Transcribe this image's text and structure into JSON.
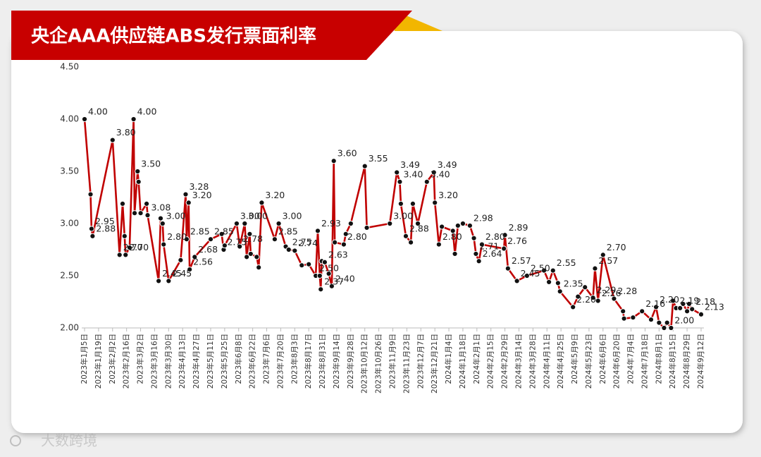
{
  "header": {
    "title": "央企AAA供应链ABS发行票面利率"
  },
  "watermark": "大数跨境",
  "chart_data": {
    "type": "line",
    "x": [
      "2023年1月5日",
      "2023年1月11日",
      "2023年1月12日",
      "2023年1月13日",
      "2023年2月2日",
      "2023年2月9日",
      "2023年2月12日",
      "2023年2月14日",
      "2023年2月15日",
      "2023年2月19日",
      "2023年2月23日",
      "2023年2月24日",
      "2023年2月27日",
      "2023年2月28日",
      "2023年3月2日",
      "2023年3月8日",
      "2023年3月9日",
      "2023年3月20日",
      "2023年3月22日",
      "2023年3月24日",
      "2023年3月25日",
      "2023年3月30日",
      "2023年4月11日",
      "2023年4月16日",
      "2023年4月17日",
      "2023年4月19日",
      "2023年4月20日",
      "2023年4月25日",
      "2023年5月11日",
      "2023年5月22日",
      "2023年5月24日",
      "2023年5月25日",
      "2023年6月6日",
      "2023年6月9日",
      "2023年6月14日",
      "2023年6月16日",
      "2023年6月19日",
      "2023年6月20日",
      "2023年6月26日",
      "2023年6月28日",
      "2023年7月1日",
      "2023年7月14日",
      "2023年7月18日",
      "2023年7月25日",
      "2023年7月28日",
      "2023年8月3日",
      "2023年8月10日",
      "2023年8月17日",
      "2023年8月24日",
      "2023年8月26日",
      "2023年8月28日",
      "2023年8月29日",
      "2023年8月30日",
      "2023年9月2日",
      "2023年9月6日",
      "2023年9月9日",
      "2023年9月11日",
      "2023年9月12日",
      "2023年9月21日",
      "2023年9月23日",
      "2023年9月28日",
      "2023年10月12日",
      "2023年10月14日",
      "2023年11月6日",
      "2023年11月13日",
      "2023年11月16日",
      "2023年11月17日",
      "2023年11月22日",
      "2023年11月27日",
      "2023年11月29日",
      "2023年12月4日",
      "2023年12月13日",
      "2023年12月20日",
      "2023年12月21日",
      "2023年12月25日",
      "2023年12月28日",
      "2024年1月8日",
      "2024年1月10日",
      "2024年1月13日",
      "2024年1月18日",
      "2024年1月25日",
      "2024年1月29日",
      "2024年1月31日",
      "2024年2月3日",
      "2024年2月6日",
      "2024年2月28日",
      "2024年2月29日",
      "2024年3月3日",
      "2024年3月12日",
      "2024年3月22日",
      "2024年4月8日",
      "2024年4月13日",
      "2024年4月17日",
      "2024年4月22日",
      "2024年4月24日",
      "2024年5月7日",
      "2024年5月12日",
      "2024年5月19日",
      "2024年5月27日",
      "2024年5月29日",
      "2024年6月1日",
      "2024年6月6日",
      "2024年6月17日",
      "2024年6月26日",
      "2024年6月27日",
      "2024年7月6日",
      "2024年7月15日",
      "2024年7月24日",
      "2024年7月29日",
      "2024年8月1日",
      "2024年8月6日",
      "2024年8月9日",
      "2024年8月13日",
      "2024年8月15日",
      "2024年8月18日",
      "2024年8月22日",
      "2024年8月25日",
      "2024年8月29日",
      "2024年8月31日",
      "2024年9月3日",
      "2024年9月12日"
    ],
    "series": [
      {
        "name": "票面利率",
        "color": "#c00000",
        "marker_color": "#111111",
        "values": [
          4,
          3.28,
          2.95,
          2.88,
          3.8,
          2.7,
          3.19,
          2.88,
          2.7,
          2.77,
          4,
          3.1,
          3.5,
          3.4,
          3.1,
          3.19,
          3.08,
          2.45,
          3.05,
          3,
          2.8,
          2.45,
          2.65,
          3.28,
          2.85,
          3.2,
          2.56,
          2.68,
          2.85,
          2.9,
          2.75,
          2.79,
          3,
          2.78,
          3,
          2.68,
          2.9,
          2.71,
          2.68,
          2.58,
          3.2,
          2.85,
          3,
          2.78,
          2.75,
          2.74,
          2.6,
          2.61,
          2.5,
          2.93,
          2.5,
          2.37,
          2.64,
          2.63,
          2.52,
          2.4,
          3.6,
          2.82,
          2.8,
          2.9,
          3,
          3.55,
          2.96,
          3,
          3.49,
          3.4,
          3.19,
          2.88,
          2.82,
          3.19,
          3,
          3.4,
          3.49,
          3.2,
          2.8,
          2.97,
          2.93,
          2.71,
          2.98,
          3,
          2.98,
          2.86,
          2.71,
          2.64,
          2.8,
          2.76,
          2.89,
          2.57,
          2.45,
          2.5,
          2.55,
          2.44,
          2.55,
          2.43,
          2.35,
          2.2,
          2.3,
          2.39,
          2.29,
          2.57,
          2.26,
          2.7,
          2.28,
          2.16,
          2.09,
          2.1,
          2.16,
          2.08,
          2.2,
          2.05,
          2,
          2.05,
          2,
          2.26,
          2.19,
          2.19,
          2.23,
          2.16,
          2.23,
          2.18,
          2.13
        ],
        "value_labels": [
          "4.00",
          null,
          "2.95",
          "2.88",
          "3.80",
          "2.70",
          null,
          null,
          "2.70",
          null,
          "4.00",
          null,
          "3.50",
          null,
          null,
          null,
          "3.08",
          "2.45",
          null,
          "3.00",
          "2.80",
          "2.45",
          null,
          "3.28",
          "2.85",
          "3.20",
          "2.56",
          "2.68",
          "2.85",
          null,
          "2.75",
          null,
          "3.00",
          "2.78",
          "3.00",
          null,
          null,
          null,
          null,
          null,
          "3.20",
          "2.85",
          "3.00",
          null,
          "2.75",
          "2.74",
          null,
          null,
          "2.50",
          "2.93",
          null,
          "2.37",
          null,
          "2.63",
          null,
          "2.40",
          "3.60",
          null,
          "2.80",
          null,
          null,
          "3.55",
          null,
          "3.00",
          "3.49",
          "3.40",
          null,
          "2.88",
          null,
          null,
          null,
          "3.40",
          "3.49",
          "3.20",
          "2.80",
          null,
          null,
          null,
          null,
          null,
          "2.98",
          null,
          "2.71",
          "2.64",
          "2.80",
          "2.76",
          "2.89",
          "2.57",
          "2.45",
          "2.50",
          null,
          null,
          "2.55",
          null,
          "2.35",
          "2.20",
          null,
          null,
          "2.29",
          "2.57",
          "2.26",
          "2.70",
          "2.28",
          null,
          null,
          null,
          "2.16",
          null,
          "2.20",
          null,
          null,
          null,
          "2.00",
          null,
          "2.19",
          null,
          null,
          null,
          null,
          "2.18",
          "2.13"
        ]
      }
    ],
    "xlim": [
      "2023年1月5日",
      "2024年9月12日"
    ],
    "xticks": [
      "2023年1月5日",
      "2023年1月19日",
      "2023年2月2日",
      "2023年2月16日",
      "2023年3月2日",
      "2023年3月16日",
      "2023年3月30日",
      "2023年4月13日",
      "2023年4月27日",
      "2023年5月11日",
      "2023年5月25日",
      "2023年6月8日",
      "2023年6月22日",
      "2023年7月6日",
      "2023年7月20日",
      "2023年8月3日",
      "2023年8月17日",
      "2023年8月31日",
      "2023年9月14日",
      "2023年9月28日",
      "2023年10月12日",
      "2023年10月26日",
      "2023年11月9日",
      "2023年11月23日",
      "2023年12月7日",
      "2023年12月21日",
      "2024年1月4日",
      "2024年1月18日",
      "2024年2月1日",
      "2024年2月15日",
      "2024年2月29日",
      "2024年3月14日",
      "2024年3月28日",
      "2024年4月11日",
      "2024年4月25日",
      "2024年5月9日",
      "2024年5月23日",
      "2024年6月6日",
      "2024年6月20日",
      "2024年7月4日",
      "2024年7月18日",
      "2024年8月1日",
      "2024年8月15日",
      "2024年8月29日",
      "2024年9月12日"
    ],
    "ylim": [
      2,
      4.5
    ],
    "yticks": [
      {
        "value": 2,
        "label": "2.00"
      },
      {
        "value": 2.5,
        "label": "2.50"
      },
      {
        "value": 3,
        "label": "3.00"
      },
      {
        "value": 3.5,
        "label": "3.50"
      },
      {
        "value": 4,
        "label": "4.00"
      },
      {
        "value": 4.5,
        "label": "4.50"
      }
    ],
    "grid": false
  }
}
